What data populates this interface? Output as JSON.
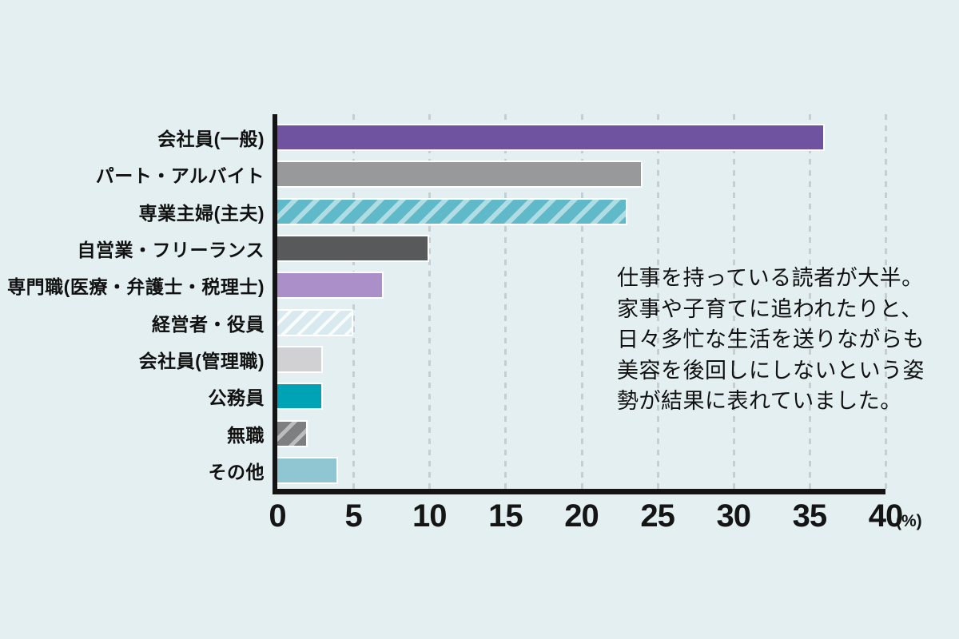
{
  "colors": {
    "background": "#e3eff1",
    "axis": "#141414",
    "gridline": "#c7ced2",
    "text": "#111111"
  },
  "chart_data": {
    "type": "bar",
    "orientation": "horizontal",
    "unit": "(%)",
    "xlim": [
      0,
      40
    ],
    "x_ticks": [
      0,
      5,
      10,
      15,
      20,
      25,
      30,
      35,
      40
    ],
    "grid": "vertical-dashed",
    "legend": "none",
    "categories": [
      "会社員(一般)",
      "パート・アルバイト",
      "専業主婦(主夫)",
      "自営業・フリーランス",
      "専門職(医療・弁護士・税理士)",
      "経営者・役員",
      "会社員(管理職)",
      "公務員",
      "無職",
      "その他"
    ],
    "values": [
      36,
      24,
      23,
      10,
      7,
      5,
      3,
      3,
      2,
      4
    ],
    "bars": [
      {
        "label": "会社員(一般)",
        "value": 36,
        "color": "#7053a0",
        "hatch": null
      },
      {
        "label": "パート・アルバイト",
        "value": 24,
        "color": "#98999b",
        "hatch": null
      },
      {
        "label": "専業主婦(主夫)",
        "value": 23,
        "color": "#5fb9c9",
        "hatch": "#b0dce3",
        "hatch_w": [
          13,
          19
        ]
      },
      {
        "label": "自営業・フリーランス",
        "value": 10,
        "color": "#58595b",
        "hatch": null
      },
      {
        "label": "専門職(医療・弁護士・税理士)",
        "value": 7,
        "color": "#ab8fc8",
        "hatch": null
      },
      {
        "label": "経営者・役員",
        "value": 5,
        "color": "#d8e9ef",
        "hatch": "#f8fcfc",
        "hatch_w": [
          10,
          14
        ]
      },
      {
        "label": "会社員(管理職)",
        "value": 3,
        "color": "#d1d1d3",
        "hatch": null
      },
      {
        "label": "公務員",
        "value": 3,
        "color": "#00a2b5",
        "hatch": null
      },
      {
        "label": "無職",
        "value": 2,
        "color": "#7e7f81",
        "hatch": "#bdbdbf",
        "hatch_w": [
          13,
          18
        ]
      },
      {
        "label": "その他",
        "value": 4,
        "color": "#8fc6d2",
        "hatch": null
      }
    ],
    "annotation": "仕事を持っている読者が大半。\n家事や子育てに追われたりと、\n日々多忙な生活を送りながらも\n美容を後回しにしないという姿\n勢が結果に表れていました。"
  }
}
